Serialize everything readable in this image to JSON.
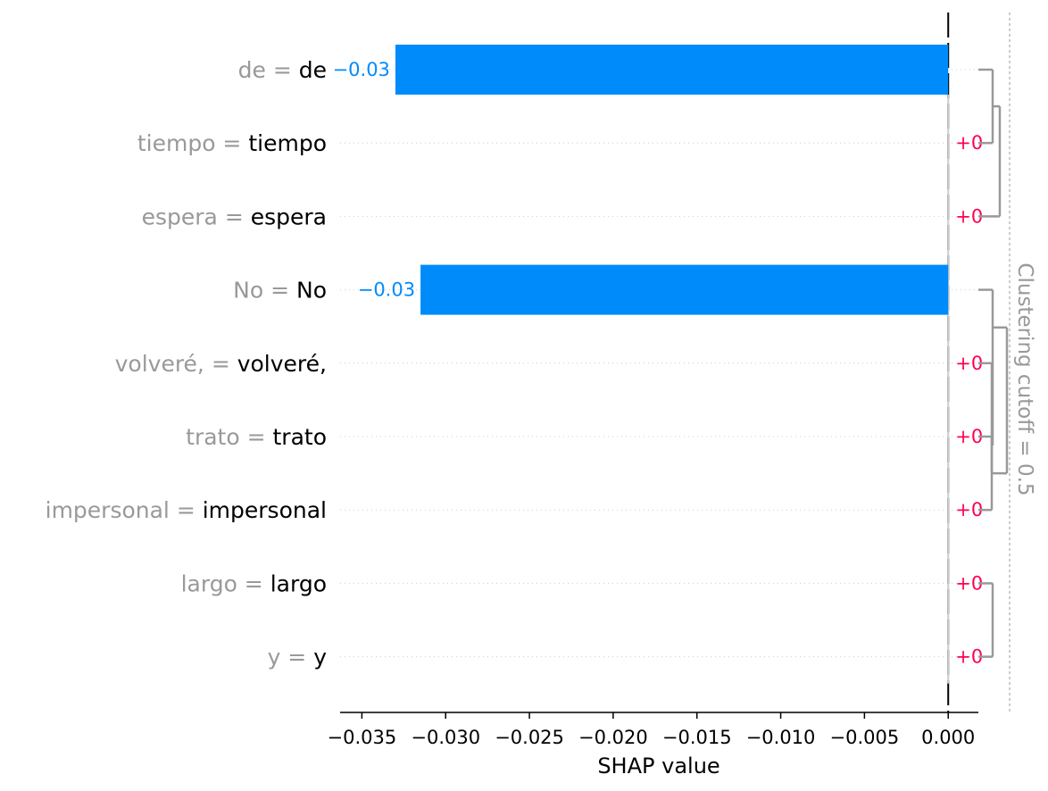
{
  "chart_data": {
    "type": "bar",
    "orientation": "horizontal",
    "features": [
      {
        "name": "de ",
        "value_text": "de",
        "shap": -0.033,
        "label": "−0.03"
      },
      {
        "name": "tiempo ",
        "value_text": "tiempo",
        "shap": 0.0,
        "label": "+0"
      },
      {
        "name": "espera",
        "value_text": "espera",
        "shap": 0.0,
        "label": "+0"
      },
      {
        "name": "No ",
        "value_text": "No",
        "shap": -0.0315,
        "label": "−0.03"
      },
      {
        "name": "volveré, ",
        "value_text": "volveré,",
        "shap": 0.0,
        "label": "+0"
      },
      {
        "name": "trato ",
        "value_text": "trato",
        "shap": 0.0,
        "label": "+0"
      },
      {
        "name": "impersonal ",
        "value_text": "impersonal",
        "shap": 0.0,
        "label": "+0"
      },
      {
        "name": "largo ",
        "value_text": "largo",
        "shap": 0.0,
        "label": "+0"
      },
      {
        "name": "y ",
        "value_text": "y",
        "shap": 0.0,
        "label": "+0"
      }
    ],
    "xlim": [
      -0.0363,
      0.0018
    ],
    "xticks": [
      -0.035,
      -0.03,
      -0.025,
      -0.02,
      -0.015,
      -0.01,
      -0.005,
      0.0
    ],
    "xtick_labels": [
      "−0.035",
      "−0.030",
      "−0.025",
      "−0.020",
      "−0.015",
      "−0.010",
      "−0.005",
      "0.000"
    ],
    "xlabel": "SHAP value",
    "cutoff_label": "Clustering cutoff = 0.5",
    "equals_sign": "=",
    "colors": {
      "negative": "#008bfb",
      "positive": "#ff0051",
      "feature_name": "#999999",
      "feature_value": "#000000",
      "dendrogram": "#999999",
      "row_line": "#cccccc"
    }
  }
}
